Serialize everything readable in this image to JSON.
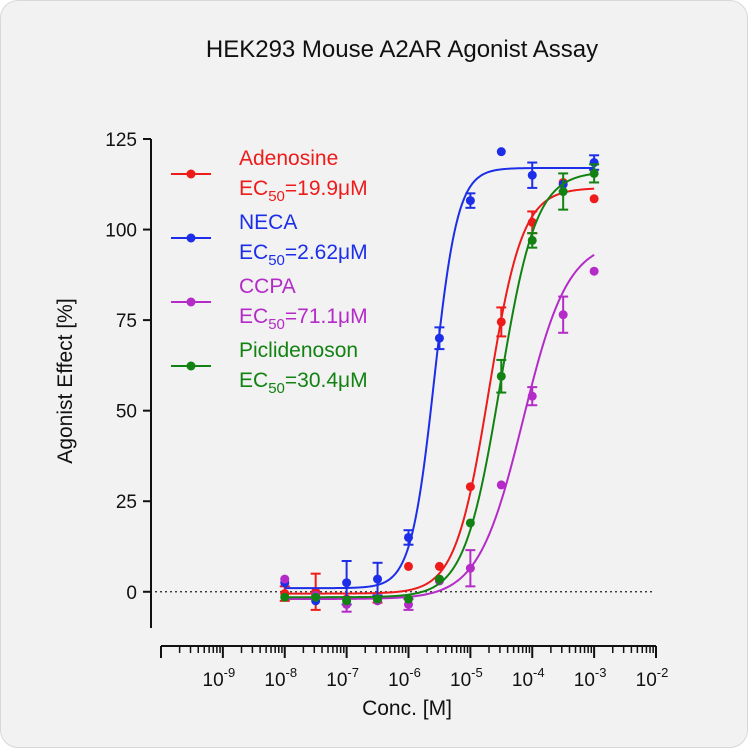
{
  "chart_data": {
    "type": "scatter",
    "title": "HEK293 Mouse A2AR Agonist Assay",
    "xlabel": "Conc. [M]",
    "ylabel": "Agonist Effect [%]",
    "xscale": "log",
    "xlim_exponent": [
      -10,
      -2
    ],
    "xtick_base": "10",
    "xtick_exponents": [
      "-9",
      "-8",
      "-7",
      "-6",
      "-5",
      "-4",
      "-3",
      "-2"
    ],
    "ylim": [
      -10,
      125
    ],
    "yticks": [
      0,
      25,
      50,
      75,
      100,
      125
    ],
    "ytick_labels": [
      "0",
      "25",
      "50",
      "75",
      "100",
      "125"
    ],
    "reference_line": 0,
    "grid": false,
    "legend_position": "top-left",
    "ec_prefix": "EC",
    "ec_sub": "50",
    "series": [
      {
        "name": "Adenosine",
        "color": "#ee1b1b",
        "ec50_label": "=19.9μM",
        "fit": {
          "bottom": -0.5,
          "top": 111.5,
          "ec50": 1.99e-05,
          "hill": 1.6
        },
        "points": [
          {
            "x": 1e-08,
            "y": -0.5,
            "err": 2
          },
          {
            "x": 3.16e-08,
            "y": 0,
            "err": 5
          },
          {
            "x": 1e-07,
            "y": -2,
            "err": 0
          },
          {
            "x": 3.16e-07,
            "y": -2,
            "err": 1
          },
          {
            "x": 1e-06,
            "y": 7,
            "err": 0
          },
          {
            "x": 3.16e-06,
            "y": 7,
            "err": 0
          },
          {
            "x": 1e-05,
            "y": 29,
            "err": 0
          },
          {
            "x": 3.16e-05,
            "y": 74.5,
            "err": 4
          },
          {
            "x": 0.0001,
            "y": 102,
            "err": 3
          },
          {
            "x": 0.000316,
            "y": 113,
            "err": 0
          },
          {
            "x": 0.001,
            "y": 108.5,
            "err": 0
          }
        ]
      },
      {
        "name": "NECA",
        "color": "#1c2ee8",
        "ec50_label": "=2.62μM",
        "fit": {
          "bottom": 1,
          "top": 117,
          "ec50": 2.62e-06,
          "hill": 2.3
        },
        "points": [
          {
            "x": 1e-08,
            "y": 2.5,
            "err": 0
          },
          {
            "x": 3.16e-08,
            "y": -2.5,
            "err": 0
          },
          {
            "x": 1e-07,
            "y": 2.5,
            "err": 6
          },
          {
            "x": 3.16e-07,
            "y": 3.5,
            "err": 4.5
          },
          {
            "x": 1e-06,
            "y": 15,
            "err": 2
          },
          {
            "x": 3.16e-06,
            "y": 70,
            "err": 3
          },
          {
            "x": 1e-05,
            "y": 108,
            "err": 2
          },
          {
            "x": 3.16e-05,
            "y": 121.5,
            "err": 0
          },
          {
            "x": 0.0001,
            "y": 115,
            "err": 3.5
          },
          {
            "x": 0.000316,
            "y": 112.5,
            "err": 0
          },
          {
            "x": 0.001,
            "y": 118.5,
            "err": 2
          }
        ]
      },
      {
        "name": "CCPA",
        "color": "#b42bc8",
        "ec50_label": "=71.1μM",
        "fit": {
          "bottom": -2,
          "top": 97,
          "ec50": 7.11e-05,
          "hill": 1.2
        },
        "points": [
          {
            "x": 1e-08,
            "y": 3.5,
            "err": 0
          },
          {
            "x": 3.16e-08,
            "y": -1,
            "err": 0
          },
          {
            "x": 1e-07,
            "y": -3.5,
            "err": 2
          },
          {
            "x": 3.16e-07,
            "y": -2.5,
            "err": 0
          },
          {
            "x": 1e-06,
            "y": -3.5,
            "err": 1.5
          },
          {
            "x": 3.16e-06,
            "y": 3,
            "err": 0
          },
          {
            "x": 1e-05,
            "y": 6.5,
            "err": 5
          },
          {
            "x": 3.16e-05,
            "y": 29.5,
            "err": 0
          },
          {
            "x": 0.0001,
            "y": 54,
            "err": 2.5
          },
          {
            "x": 0.000316,
            "y": 76.5,
            "err": 5
          },
          {
            "x": 0.001,
            "y": 88.5,
            "err": 0
          }
        ]
      },
      {
        "name": "Piclidenoson",
        "color": "#128212",
        "ec50_label": "=30.4μM",
        "fit": {
          "bottom": -1.5,
          "top": 116,
          "ec50": 3.04e-05,
          "hill": 1.5
        },
        "points": [
          {
            "x": 1e-08,
            "y": -1.5,
            "err": 0
          },
          {
            "x": 3.16e-08,
            "y": -1.5,
            "err": 0
          },
          {
            "x": 1e-07,
            "y": -2.5,
            "err": 0
          },
          {
            "x": 3.16e-07,
            "y": -2,
            "err": 0
          },
          {
            "x": 1e-06,
            "y": -2,
            "err": 0
          },
          {
            "x": 3.16e-06,
            "y": 3.5,
            "err": 0
          },
          {
            "x": 1e-05,
            "y": 19,
            "err": 0
          },
          {
            "x": 3.16e-05,
            "y": 59.5,
            "err": 4.5
          },
          {
            "x": 0.0001,
            "y": 97,
            "err": 2
          },
          {
            "x": 0.000316,
            "y": 110.5,
            "err": 5
          },
          {
            "x": 0.001,
            "y": 115.5,
            "err": 2.5
          }
        ]
      }
    ]
  }
}
